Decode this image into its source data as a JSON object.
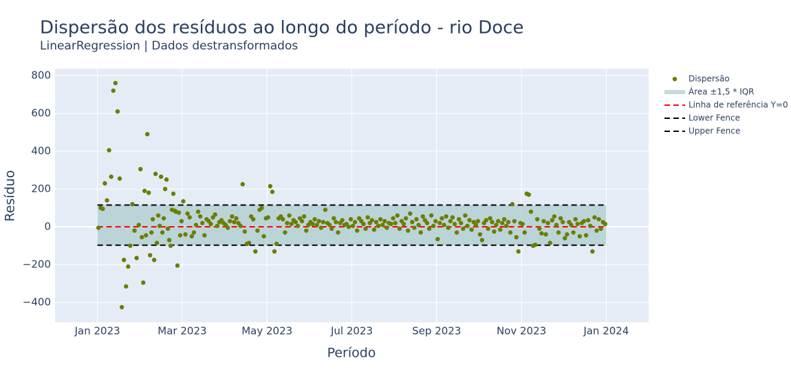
{
  "chart_data": {
    "type": "scatter",
    "title": "Dispersão dos resíduos ao longo do período - rio Doce",
    "subtitle": "LinearRegression | Dados destransformados",
    "x_label": "Período",
    "y_label": "Resíduo",
    "xlim": [
      "2022-12",
      "2024-02"
    ],
    "xticks": [
      {
        "value": "2023-01",
        "label": "Jan 2023"
      },
      {
        "value": "2023-03",
        "label": "Mar 2023"
      },
      {
        "value": "2023-05",
        "label": "May 2023"
      },
      {
        "value": "2023-07",
        "label": "Jul 2023"
      },
      {
        "value": "2023-09",
        "label": "Sep 2023"
      },
      {
        "value": "2023-11",
        "label": "Nov 2023"
      },
      {
        "value": "2024-01",
        "label": "Jan 2024"
      }
    ],
    "ylim": [
      -505,
      836
    ],
    "yticks": [
      {
        "value": -400,
        "label": "−400"
      },
      {
        "value": -200,
        "label": "−200"
      },
      0,
      200,
      400,
      600,
      800
    ],
    "grid": true,
    "series": [
      {
        "name": "Dispersão",
        "color": "#6b7d00",
        "x": [
          "2023-01",
          "2023-01",
          "2023-01",
          "2023-01",
          "2023-01",
          "2023-01",
          "2023-01",
          "2023-01",
          "2023-01",
          "2023-01",
          "2023-01",
          "2023-01",
          "2023-01",
          "2023-01",
          "2023-01",
          "2023-01",
          "2023-01",
          "2023-01",
          "2023-01",
          "2023-01",
          "2023-02",
          "2023-02",
          "2023-02",
          "2023-02",
          "2023-02",
          "2023-02",
          "2023-02",
          "2023-02",
          "2023-02",
          "2023-02",
          "2023-02",
          "2023-02",
          "2023-02",
          "2023-02",
          "2023-02",
          "2023-02",
          "2023-02",
          "2023-02",
          "2023-02",
          "2023-02",
          "2023-02",
          "2023-02",
          "2023-02",
          "2023-02",
          "2023-02",
          "2023-02",
          "2023-02",
          "2023-02",
          "2023-02",
          "2023-02",
          "2023-02",
          "2023-03",
          "2023-03",
          "2023-03",
          "2023-03",
          "2023-03",
          "2023-03",
          "2023-03",
          "2023-03",
          "2023-03",
          "2023-03",
          "2023-03",
          "2023-03",
          "2023-03",
          "2023-03",
          "2023-03",
          "2023-03",
          "2023-03",
          "2023-03",
          "2023-03",
          "2023-03",
          "2023-04",
          "2023-04",
          "2023-04",
          "2023-04",
          "2023-04",
          "2023-04",
          "2023-04",
          "2023-04",
          "2023-04",
          "2023-04",
          "2023-04",
          "2023-04",
          "2023-04",
          "2023-04",
          "2023-04",
          "2023-04",
          "2023-04",
          "2023-04",
          "2023-04",
          "2023-04",
          "2023-05",
          "2023-05",
          "2023-05",
          "2023-05",
          "2023-05",
          "2023-05",
          "2023-05",
          "2023-05",
          "2023-05",
          "2023-05",
          "2023-05",
          "2023-05",
          "2023-05",
          "2023-05",
          "2023-05",
          "2023-05",
          "2023-05",
          "2023-05",
          "2023-05",
          "2023-05",
          "2023-06",
          "2023-06",
          "2023-06",
          "2023-06",
          "2023-06",
          "2023-06",
          "2023-06",
          "2023-06",
          "2023-06",
          "2023-06",
          "2023-06",
          "2023-06",
          "2023-06",
          "2023-06",
          "2023-06",
          "2023-06",
          "2023-06",
          "2023-06",
          "2023-06",
          "2023-06",
          "2023-07",
          "2023-07",
          "2023-07",
          "2023-07",
          "2023-07",
          "2023-07",
          "2023-07",
          "2023-07",
          "2023-07",
          "2023-07",
          "2023-07",
          "2023-07",
          "2023-07",
          "2023-07",
          "2023-07",
          "2023-07",
          "2023-07",
          "2023-07",
          "2023-07",
          "2023-07",
          "2023-08",
          "2023-08",
          "2023-08",
          "2023-08",
          "2023-08",
          "2023-08",
          "2023-08",
          "2023-08",
          "2023-08",
          "2023-08",
          "2023-08",
          "2023-08",
          "2023-08",
          "2023-08",
          "2023-08",
          "2023-08",
          "2023-08",
          "2023-08",
          "2023-08",
          "2023-08",
          "2023-09",
          "2023-09",
          "2023-09",
          "2023-09",
          "2023-09",
          "2023-09",
          "2023-09",
          "2023-09",
          "2023-09",
          "2023-09",
          "2023-09",
          "2023-09",
          "2023-09",
          "2023-09",
          "2023-09",
          "2023-09",
          "2023-09",
          "2023-09",
          "2023-09",
          "2023-09",
          "2023-10",
          "2023-10",
          "2023-10",
          "2023-10",
          "2023-10",
          "2023-10",
          "2023-10",
          "2023-10",
          "2023-10",
          "2023-10",
          "2023-10",
          "2023-10",
          "2023-10",
          "2023-10",
          "2023-10",
          "2023-10",
          "2023-10",
          "2023-10",
          "2023-10",
          "2023-10",
          "2023-10",
          "2023-11",
          "2023-11",
          "2023-11",
          "2023-11",
          "2023-11",
          "2023-11",
          "2023-11",
          "2023-11",
          "2023-11",
          "2023-11",
          "2023-11",
          "2023-11",
          "2023-11",
          "2023-11",
          "2023-11",
          "2023-11",
          "2023-11",
          "2023-11",
          "2023-11",
          "2023-11",
          "2023-12",
          "2023-12",
          "2023-12",
          "2023-12",
          "2023-12",
          "2023-12",
          "2023-12",
          "2023-12",
          "2023-12",
          "2023-12",
          "2023-12",
          "2023-12",
          "2023-12",
          "2023-12",
          "2023-12",
          "2023-12",
          "2023-12",
          "2023-12",
          "2023-12",
          "2023-12"
        ],
        "values": [
          -5,
          100,
          95,
          230,
          140,
          405,
          265,
          720,
          760,
          610,
          255,
          -425,
          -175,
          -315,
          -210,
          -100,
          120,
          -20,
          -165,
          10,
          305,
          -55,
          -295,
          190,
          -45,
          490,
          180,
          -150,
          -30,
          40,
          -175,
          280,
          -85,
          60,
          5,
          265,
          -30,
          45,
          200,
          250,
          -10,
          -70,
          -100,
          90,
          175,
          85,
          80,
          -205,
          75,
          -45,
          30,
          135,
          -40,
          70,
          50,
          -50,
          -30,
          10,
          80,
          55,
          20,
          -45,
          40,
          30,
          15,
          50,
          65,
          5,
          25,
          35,
          20,
          10,
          -5,
          30,
          55,
          25,
          45,
          20,
          5,
          225,
          -25,
          -90,
          -85,
          55,
          40,
          -130,
          -20,
          90,
          100,
          -50,
          45,
          50,
          215,
          185,
          -130,
          -90,
          45,
          55,
          40,
          -30,
          20,
          60,
          15,
          35,
          25,
          5,
          45,
          30,
          55,
          -20,
          10,
          25,
          15,
          40,
          10,
          30,
          -5,
          25,
          90,
          20,
          10,
          -10,
          45,
          25,
          -30,
          20,
          35,
          10,
          15,
          0,
          40,
          5,
          25,
          -20,
          45,
          30,
          15,
          -10,
          50,
          20,
          35,
          -15,
          25,
          5,
          40,
          10,
          30,
          -5,
          20,
          15,
          45,
          20,
          60,
          -10,
          30,
          15,
          45,
          -20,
          70,
          25,
          -5,
          40,
          10,
          -30,
          55,
          35,
          20,
          -10,
          60,
          5,
          30,
          -65,
          20,
          45,
          10,
          55,
          -5,
          30,
          50,
          15,
          -30,
          40,
          20,
          -10,
          60,
          5,
          35,
          -15,
          25,
          10,
          30,
          -40,
          -70,
          20,
          35,
          -10,
          45,
          25,
          -25,
          10,
          30,
          -15,
          20,
          40,
          5,
          25,
          -30,
          120,
          30,
          -55,
          -130,
          20,
          15,
          -30,
          175,
          170,
          80,
          -100,
          -95,
          40,
          -10,
          -35,
          30,
          -40,
          20,
          -85,
          35,
          55,
          10,
          -30,
          45,
          25,
          -60,
          -40,
          25,
          10,
          -30,
          40,
          15,
          -50,
          20,
          30,
          -45,
          35,
          5,
          -130,
          50,
          -20,
          40,
          -10,
          25,
          15
        ]
      }
    ],
    "area": {
      "name": "Área ±1,5 * IQR",
      "color": "#9ec4c4"
    },
    "reference_line": {
      "name": "Linha de referência Y=0",
      "value": 0,
      "color": "#ff0000"
    },
    "lower_fence": {
      "name": "Lower Fence",
      "value": -97,
      "color": "#000000"
    },
    "upper_fence": {
      "name": "Upper Fence",
      "value": 115,
      "color": "#000000"
    }
  }
}
